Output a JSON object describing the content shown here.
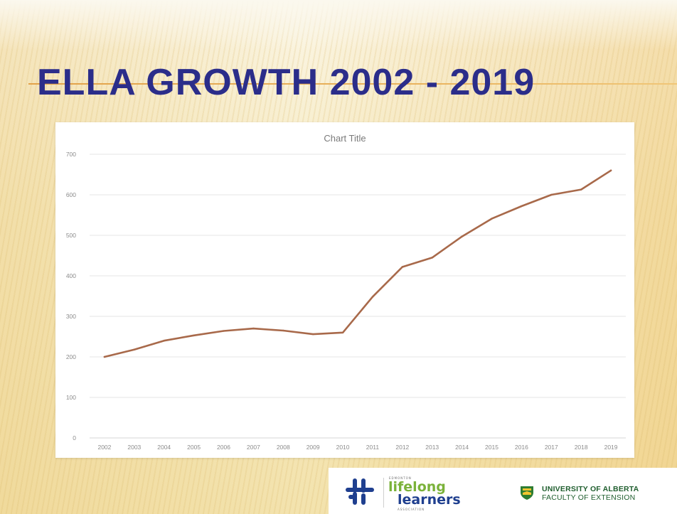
{
  "slide": {
    "title": "ELLA GROWTH 2002 - 2019"
  },
  "colors": {
    "title": "#2b2d8a",
    "title_rule": "#e2a24a",
    "line": "#a8694a",
    "gridline": "#e6e6e6",
    "axis_text": "#8c8c8c"
  },
  "chart_data": {
    "type": "line",
    "title": "Chart Title",
    "xlabel": "",
    "ylabel": "",
    "categories": [
      "2002",
      "2003",
      "2004",
      "2005",
      "2006",
      "2007",
      "2008",
      "2009",
      "2010",
      "2011",
      "2012",
      "2013",
      "2014",
      "2015",
      "2016",
      "2017",
      "2018",
      "2019"
    ],
    "series": [
      {
        "values": [
          200,
          218,
          240,
          253,
          264,
          270,
          265,
          256,
          260,
          348,
          422,
          445,
          497,
          541,
          572,
          600,
          613,
          660
        ]
      }
    ],
    "ylim": [
      0,
      700
    ],
    "yticks": [
      0,
      100,
      200,
      300,
      400,
      500,
      600,
      700
    ],
    "grid": true,
    "legend": "none"
  },
  "logos": {
    "ella": {
      "top_text": "EDMONTON",
      "word1": "lifelong",
      "word2": "learners",
      "bottom_text": "ASSOCIATION",
      "icon": "ella-logo-icon"
    },
    "university": {
      "name": "UNIVERSITY OF ALBERTA",
      "faculty": "FACULTY OF EXTENSION",
      "icon": "university-crest-icon"
    }
  }
}
